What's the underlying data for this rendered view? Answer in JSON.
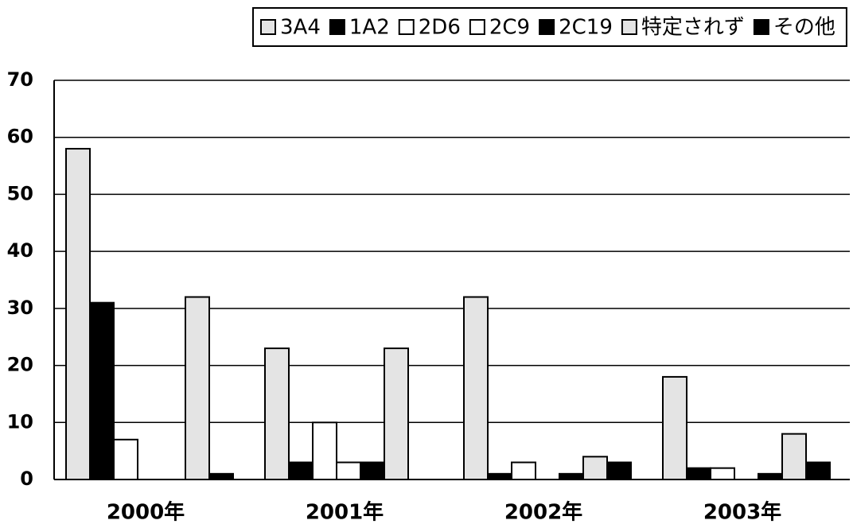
{
  "chart_data": {
    "type": "bar",
    "categories": [
      "2000年",
      "2001年",
      "2002年",
      "2003年"
    ],
    "series": [
      {
        "name": "3A4",
        "color": "#e4e4e4",
        "values": [
          58,
          23,
          32,
          18
        ]
      },
      {
        "name": "1A2",
        "color": "#000000",
        "values": [
          31,
          3,
          1,
          2
        ]
      },
      {
        "name": "2D6",
        "color": "#ffffff",
        "values": [
          7,
          10,
          3,
          2
        ]
      },
      {
        "name": "2C9",
        "color": "#ffffff",
        "values": [
          0,
          3,
          0,
          0
        ]
      },
      {
        "name": "2C19",
        "color": "#000000",
        "values": [
          0,
          3,
          1,
          1
        ]
      },
      {
        "name": "特定されず",
        "color": "#e4e4e4",
        "values": [
          32,
          23,
          4,
          8
        ]
      },
      {
        "name": "その他",
        "color": "#000000",
        "values": [
          1,
          0,
          3,
          3
        ]
      }
    ],
    "ylim": [
      0,
      70
    ],
    "yticks": [
      0,
      10,
      20,
      30,
      40,
      50,
      60,
      70
    ],
    "grid": true,
    "legend": "top"
  }
}
